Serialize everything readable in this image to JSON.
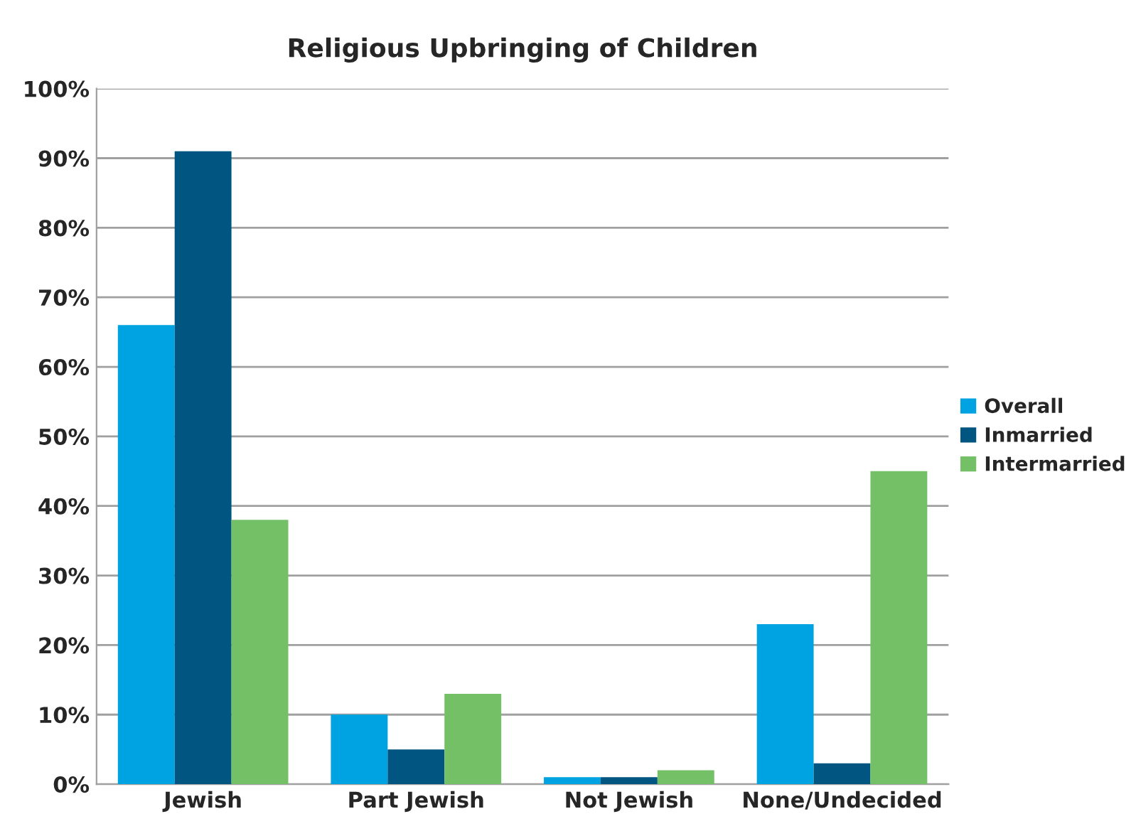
{
  "chart_data": {
    "type": "bar",
    "title": "Religious Upbringing of Children",
    "categories": [
      "Jewish",
      "Part Jewish",
      "Not Jewish",
      "None/Undecided"
    ],
    "series": [
      {
        "name": "Overall",
        "color": "#00a3e2",
        "values": [
          66,
          10,
          1,
          23
        ]
      },
      {
        "name": "Inmarried",
        "color": "#005581",
        "values": [
          91,
          5,
          1,
          3
        ]
      },
      {
        "name": "Intermarried",
        "color": "#74c067",
        "values": [
          38,
          13,
          2,
          45
        ]
      }
    ],
    "ylim": [
      0,
      100
    ],
    "yticks": [
      {
        "value": 0,
        "label": "0%"
      },
      {
        "value": 10,
        "label": "10%"
      },
      {
        "value": 20,
        "label": "20%"
      },
      {
        "value": 30,
        "label": "30%"
      },
      {
        "value": 40,
        "label": "40%"
      },
      {
        "value": 50,
        "label": "50%"
      },
      {
        "value": 60,
        "label": "60%"
      },
      {
        "value": 70,
        "label": "70%"
      },
      {
        "value": 80,
        "label": "80%"
      },
      {
        "value": 90,
        "label": "90%"
      },
      {
        "value": 100,
        "label": "100%"
      }
    ],
    "grid": "y",
    "legend": "right"
  }
}
